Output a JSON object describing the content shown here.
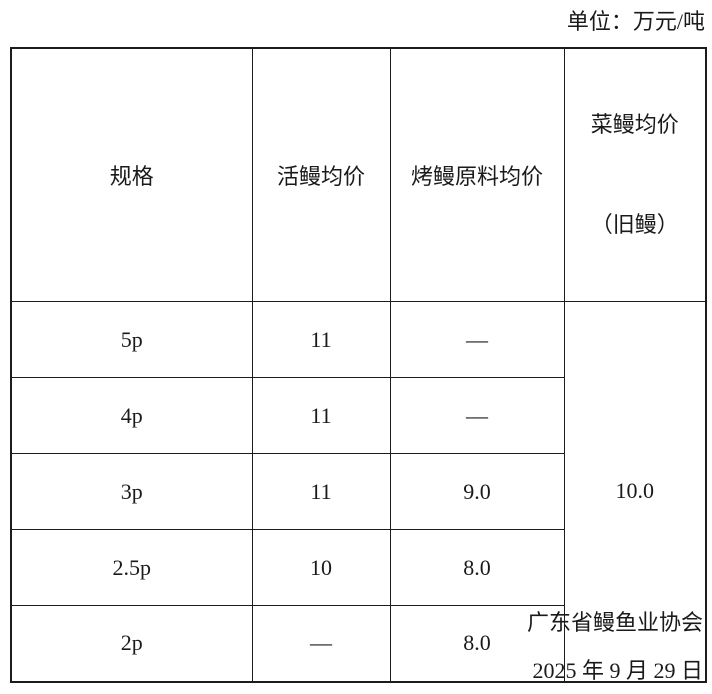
{
  "page": {
    "unit_label": "单位：万元/吨",
    "footer": {
      "org": "广东省鳗鱼业协会",
      "date": "2025 年 9 月 29 日"
    }
  },
  "table": {
    "columns": [
      {
        "label": "规格"
      },
      {
        "label": "活鳗均价"
      },
      {
        "label": "烤鳗原料均价"
      },
      {
        "line1": "菜鳗均价",
        "line2": "（旧鳗）"
      }
    ],
    "rows": [
      {
        "spec": "5p",
        "live_avg": "11",
        "roast_raw_avg": "—"
      },
      {
        "spec": "4p",
        "live_avg": "11",
        "roast_raw_avg": "—"
      },
      {
        "spec": "3p",
        "live_avg": "11",
        "roast_raw_avg": "9.0"
      },
      {
        "spec": "2.5p",
        "live_avg": "10",
        "roast_raw_avg": "8.0"
      },
      {
        "spec": "2p",
        "live_avg": "—",
        "roast_raw_avg": "8.0"
      }
    ],
    "merged_cell": {
      "value": "10.0",
      "rowspan": "5"
    }
  },
  "colors": {
    "border": "#1c1c1c",
    "text": "#1a1a1a",
    "background": "#ffffff"
  }
}
